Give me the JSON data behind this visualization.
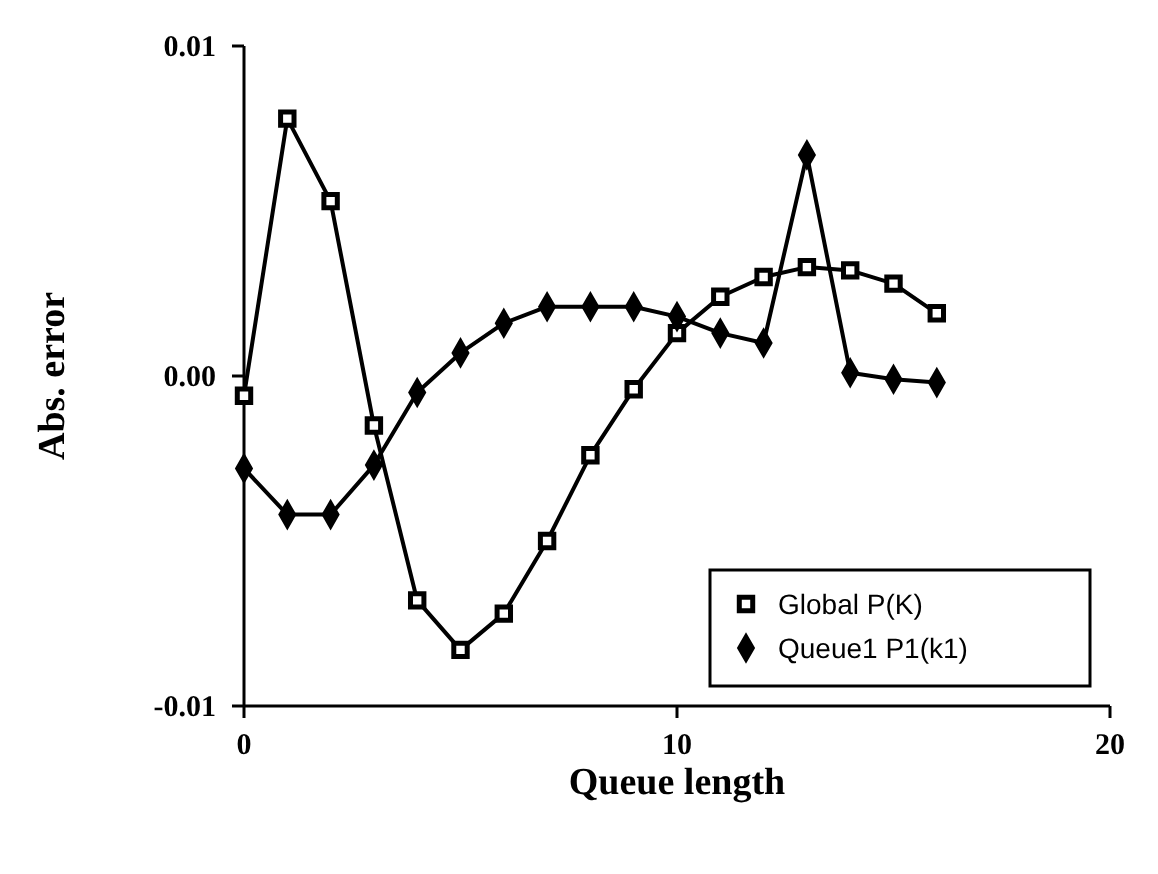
{
  "chart_data": {
    "type": "line",
    "xlabel": "Queue length",
    "ylabel": "Abs. error",
    "x": [
      0,
      1,
      2,
      3,
      4,
      5,
      6,
      7,
      8,
      9,
      10,
      11,
      12,
      13,
      14,
      15,
      16
    ],
    "xlim": [
      0,
      20
    ],
    "xticks": [
      0,
      10,
      20
    ],
    "ylim": [
      -0.01,
      0.01
    ],
    "yticks": [
      -0.01,
      {
        "value": 0,
        "label": "0.00"
      },
      0.01
    ],
    "legend": "bottom right",
    "grid": false,
    "series": [
      {
        "name": "Global P(K)",
        "color": "#000000",
        "marker": "square",
        "values": [
          -0.0006,
          0.0078,
          0.0053,
          -0.0015,
          -0.0068,
          -0.0083,
          -0.0072,
          -0.005,
          -0.0024,
          -0.0004,
          0.0013,
          0.0024,
          0.003,
          0.0033,
          0.0032,
          0.0028,
          0.0019
        ]
      },
      {
        "name": "Queue1 P1(k1)",
        "color": "#000000",
        "marker": "diamond",
        "values": [
          -0.0028,
          -0.0042,
          -0.0042,
          -0.0027,
          -0.0005,
          0.0007,
          0.0016,
          0.0021,
          0.0021,
          0.0021,
          0.0018,
          0.0013,
          0.001,
          0.0067,
          0.0001,
          -0.0001,
          -0.0002
        ]
      }
    ]
  }
}
